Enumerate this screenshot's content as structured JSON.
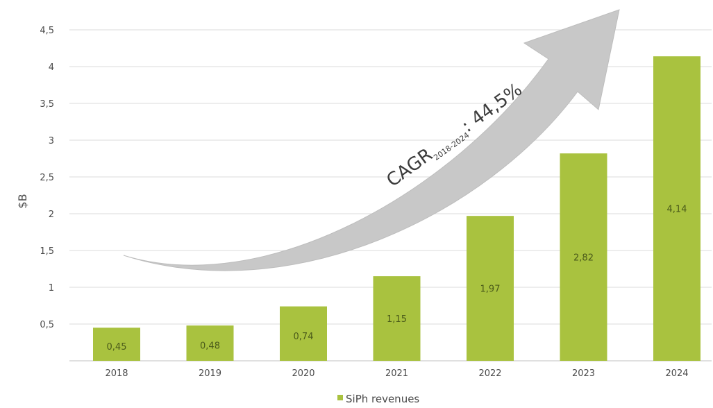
{
  "chart_data": {
    "type": "bar",
    "categories": [
      "2018",
      "2019",
      "2020",
      "2021",
      "2022",
      "2023",
      "2024"
    ],
    "series": [
      {
        "name": "SiPh revenues",
        "values": [
          0.45,
          0.48,
          0.74,
          1.15,
          1.97,
          2.82,
          4.14
        ]
      }
    ],
    "data_labels": [
      "0,45",
      "0,48",
      "0,74",
      "1,15",
      "1,97",
      "2,82",
      "4,14"
    ],
    "ylabel": "$B",
    "xlabel": "",
    "ylim": [
      0,
      4.5
    ],
    "yticks": [
      {
        "value": 0.5,
        "label": "0,5"
      },
      {
        "value": 1,
        "label": "1"
      },
      {
        "value": 1.5,
        "label": "1,5"
      },
      {
        "value": 2,
        "label": "2"
      },
      {
        "value": 2.5,
        "label": "2,5"
      },
      {
        "value": 3,
        "label": "3"
      },
      {
        "value": 3.5,
        "label": "3,5"
      },
      {
        "value": 4,
        "label": "4"
      },
      {
        "value": 4.5,
        "label": "4,5"
      }
    ],
    "grid": true,
    "legend": {
      "position": "bottom",
      "entries": [
        "SiPh revenues"
      ]
    },
    "annotation": {
      "main": "CAGR",
      "subscript": "2018-2024",
      "value": ": 44,5%"
    },
    "colors": {
      "bar": "#a9c23f",
      "arrow": "#c8c8c8",
      "grid": "#e2e2e2"
    }
  }
}
